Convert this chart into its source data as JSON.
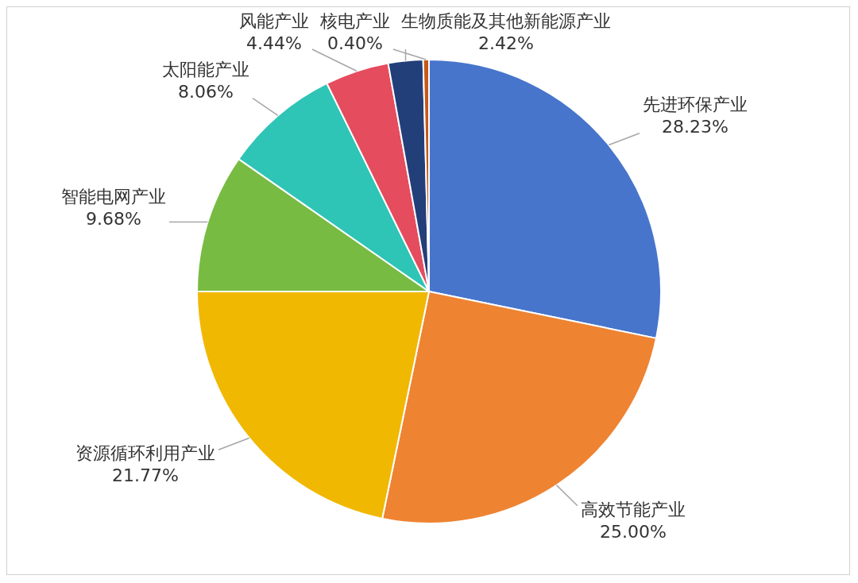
{
  "chart_data": {
    "type": "pie",
    "categories": [
      "先进环保产业",
      "高效节能产业",
      "资源循环利用产业",
      "智能电网产业",
      "太阳能产业",
      "风能产业",
      "生物质能及其他新能源产业",
      "核电产业"
    ],
    "values": [
      28.23,
      25.0,
      21.77,
      9.68,
      8.06,
      4.44,
      2.42,
      0.4
    ],
    "value_labels": [
      "28.23%",
      "25.00%",
      "21.77%",
      "9.68%",
      "8.06%",
      "4.44%",
      "2.42%",
      "0.40%"
    ],
    "colors": [
      "#4775cc",
      "#ee8332",
      "#f0b800",
      "#78bb43",
      "#2ec4b6",
      "#e54c5e",
      "#233f7a",
      "#c5581a"
    ]
  }
}
